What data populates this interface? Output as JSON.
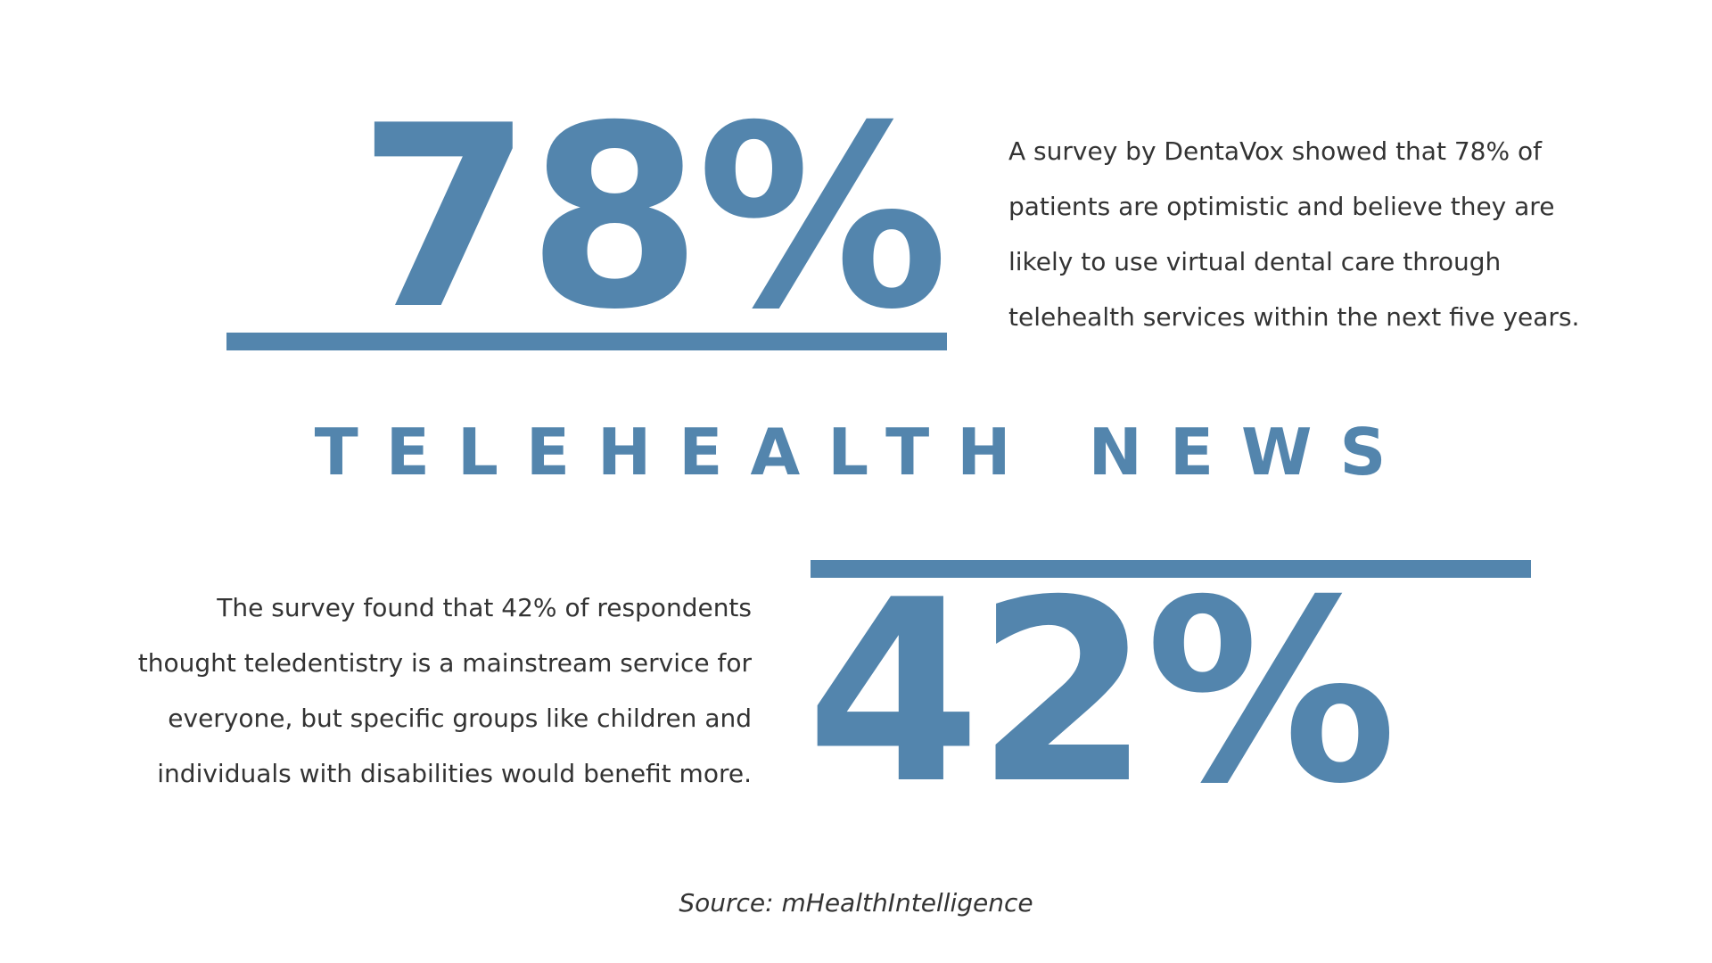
{
  "colors": {
    "accent": "#5385AD",
    "text": "#333333",
    "background": "#FFFFFF"
  },
  "top_stat": {
    "value": "78%",
    "description_lines": [
      "A survey by DentaVox showed that 78% of",
      "patients are optimistic and believe they are",
      "likely to use virtual dental care through",
      "telehealth services within the next five years."
    ]
  },
  "headline": "TELEHEALTH NEWS",
  "bottom_stat": {
    "value": "42%",
    "description_lines": [
      "The survey found that 42% of respondents",
      "thought teledentistry is a mainstream service for",
      "everyone, but specific groups like children and",
      "individuals with disabilities would benefit more."
    ]
  },
  "source": "Source: mHealthIntelligence"
}
